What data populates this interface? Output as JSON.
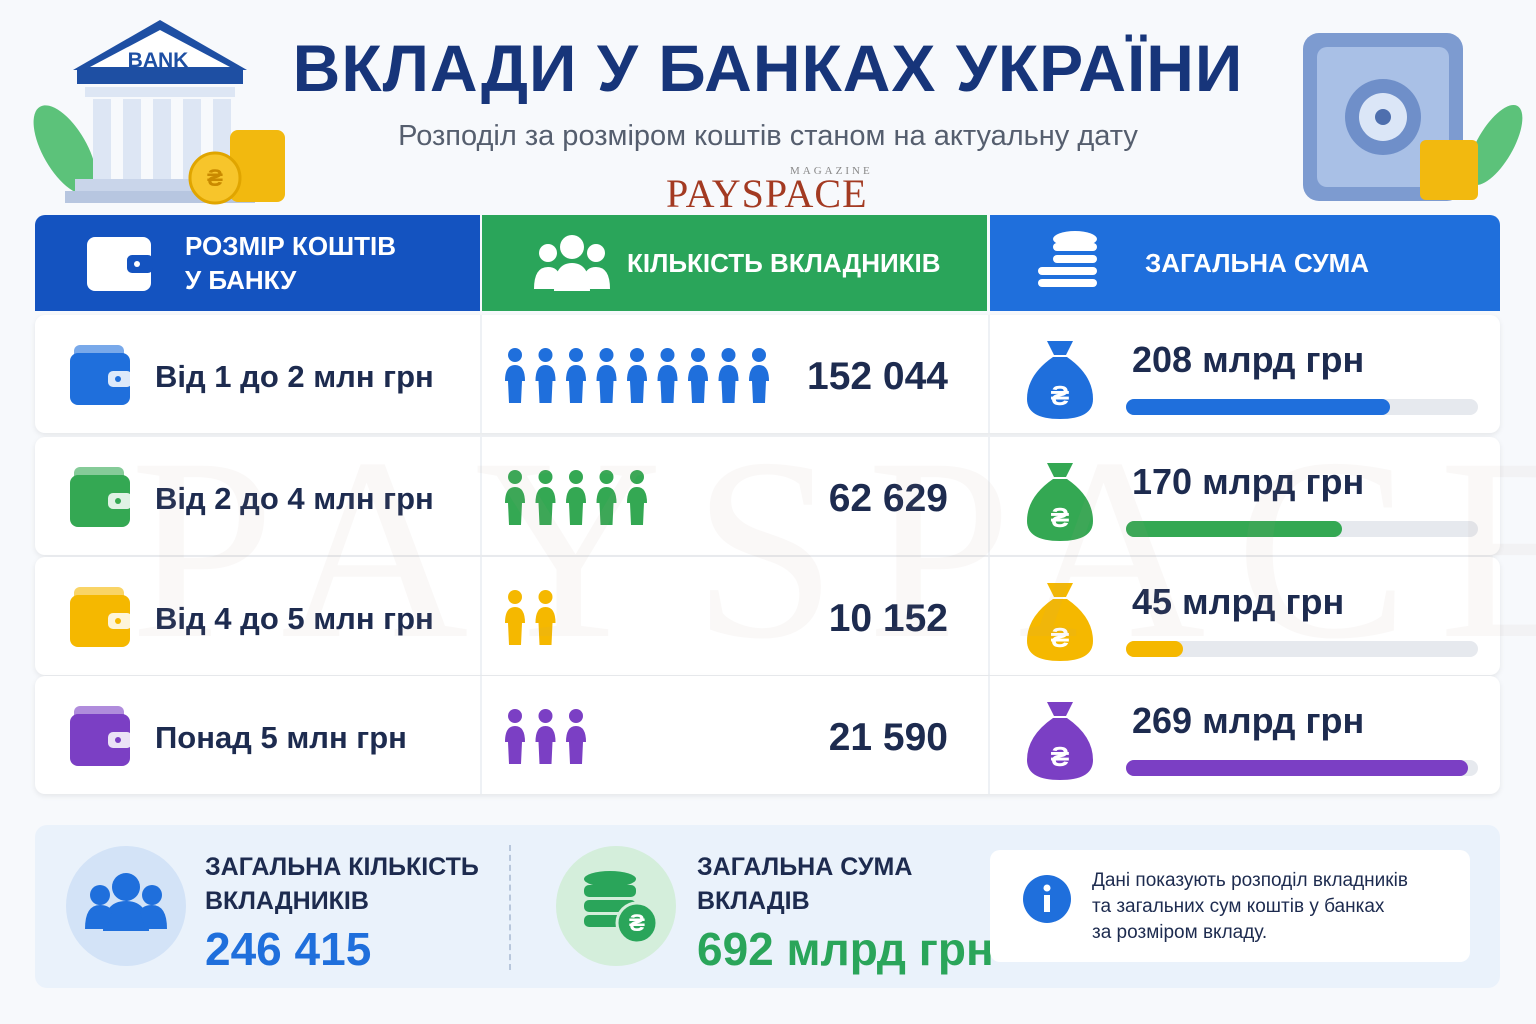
{
  "header": {
    "title": "ВКЛАДИ У БАНКАХ УКРАЇНИ",
    "subtitle": "Розподіл за розміром коштів станом на актуальну дату",
    "logo": {
      "main": "PAYSPACE",
      "small": "MAGAZINE"
    },
    "bank_sign": "BANK"
  },
  "currency_symbol": "₴",
  "table": {
    "columns": [
      "РОЗМІР КОШТІВ\nУ БАНКУ",
      "КІЛЬКІСТЬ ВКЛАДНИКІВ",
      "ЗАГАЛЬНА СУМА"
    ],
    "rows": [
      {
        "range": "Від 1 до 2 млн грн",
        "depositors": "152 044",
        "amount": {
          "value": 208,
          "label": "208 млрд грн"
        },
        "color": "#1f6fdc"
      },
      {
        "range": "Від 2 до 4 млн грн",
        "depositors": "62 629",
        "amount": {
          "value": 170,
          "label": "170 млрд грн"
        },
        "color": "#34a853"
      },
      {
        "range": "Від 4 до 5 млн грн",
        "depositors": "10 152",
        "amount": {
          "value": 45,
          "label": "45 млрд грн"
        },
        "color": "#f5b800"
      },
      {
        "range": "Понад 5 млн грн",
        "depositors": "21 590",
        "amount": {
          "value": 269,
          "label": "269 млрд грн"
        },
        "color": "#7b3fc4"
      }
    ]
  },
  "summary": {
    "depositors": {
      "title": "ЗАГАЛЬНА КІЛЬКІСТЬ\nВКЛАДНИКІВ",
      "value": "246 415"
    },
    "amount": {
      "title": "ЗАГАЛЬНА СУМА\nВКЛАДІВ",
      "value": "692 млрд грн"
    },
    "note": "Дані показують розподіл вкладників\nта загальних сум коштів у банках\nза розміром вкладу."
  }
}
